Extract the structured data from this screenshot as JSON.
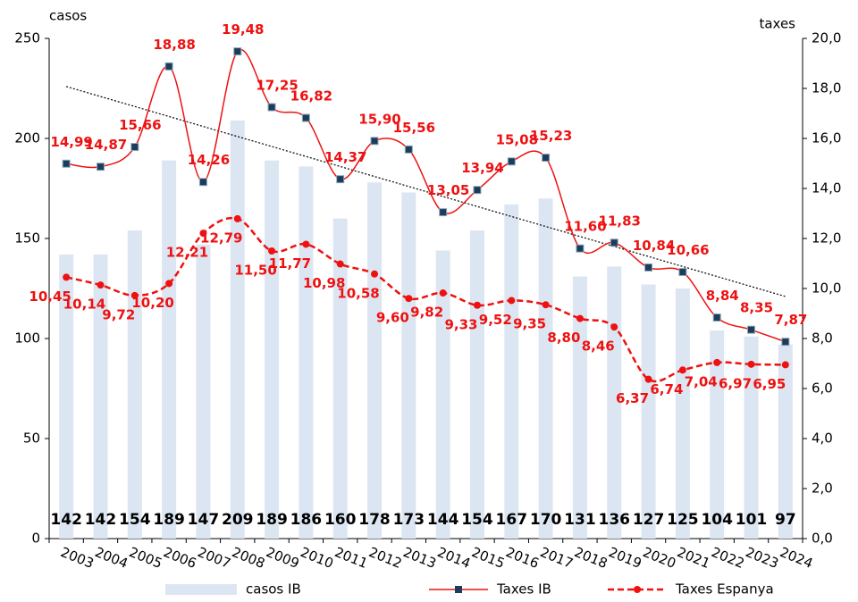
{
  "chart_data": {
    "type": "combo",
    "y_label": "casos",
    "y2_label": "taxes",
    "categories": [
      "2003",
      "2004",
      "2005",
      "2006",
      "2007",
      "2008",
      "2009",
      "2010",
      "2011",
      "2012",
      "2013",
      "2014",
      "2015",
      "2016",
      "2017",
      "2018",
      "2019",
      "2020",
      "2021",
      "2022",
      "2023",
      "2024"
    ],
    "series": [
      {
        "name": "casos IB",
        "type": "bar",
        "color": "#dce6f2",
        "axis": "y",
        "values": [
          142,
          142,
          154,
          189,
          147,
          209,
          189,
          186,
          160,
          178,
          173,
          144,
          154,
          167,
          170,
          131,
          136,
          127,
          125,
          104,
          101,
          97
        ]
      },
      {
        "name": "Taxes IB",
        "type": "line",
        "color": "#ee1111",
        "marker_color": "#1f3b5a",
        "marker": "square",
        "dash": false,
        "axis": "y2",
        "trendline": true,
        "values": [
          14.99,
          14.87,
          15.66,
          18.88,
          14.26,
          19.48,
          17.25,
          16.82,
          14.37,
          15.9,
          15.56,
          13.05,
          13.94,
          15.08,
          15.23,
          11.6,
          11.83,
          10.84,
          10.66,
          8.84,
          8.35,
          7.87
        ],
        "value_labels": [
          "14,99",
          "14,87",
          "15,66",
          "18,88",
          "14,26",
          "19,48",
          "17,25",
          "16,82",
          "14,37",
          "15,90",
          "15,56",
          "13,05",
          "13,94",
          "15,08",
          "15,23",
          "11,60",
          "11,83",
          "10,84",
          "10,66",
          "8,84",
          "8,35",
          "7,87"
        ]
      },
      {
        "name": "Taxes Espanya",
        "type": "line",
        "color": "#ee1111",
        "marker_color": "#ee1111",
        "marker": "circle",
        "dash": true,
        "axis": "y2",
        "values": [
          10.45,
          10.14,
          9.72,
          10.2,
          12.21,
          12.79,
          11.5,
          11.77,
          10.98,
          10.58,
          9.6,
          9.82,
          9.33,
          9.52,
          9.35,
          8.8,
          8.46,
          6.37,
          6.74,
          7.04,
          6.97,
          6.95
        ],
        "value_labels": [
          "10,45",
          "10,14",
          "9,72",
          "10,20",
          "12,21",
          "12,79",
          "11,50",
          "11,77",
          "10,98",
          "10,58",
          "9,60",
          "9,82",
          "9,33",
          "9,52",
          "9,35",
          "8,80",
          "8,46",
          "6,37",
          "6,74",
          "7,04",
          "6,97",
          "6,95"
        ]
      }
    ],
    "ylim": [
      0,
      250
    ],
    "yticks": [
      0,
      50,
      100,
      150,
      200,
      250
    ],
    "y2lim": [
      0,
      20
    ],
    "y2ticks": [
      {
        "value": 0,
        "label": "0,0"
      },
      {
        "value": 2,
        "label": "2,0"
      },
      {
        "value": 4,
        "label": "4,0"
      },
      {
        "value": 6,
        "label": "6,0"
      },
      {
        "value": 8,
        "label": "8,0"
      },
      {
        "value": 10,
        "label": "10,0"
      },
      {
        "value": 12,
        "label": "12,0"
      },
      {
        "value": 14,
        "label": "14,0"
      },
      {
        "value": 16,
        "label": "16,0"
      },
      {
        "value": 18,
        "label": "18,0"
      },
      {
        "value": 20,
        "label": "20,0"
      }
    ],
    "grid": false,
    "legend": "bottom"
  }
}
